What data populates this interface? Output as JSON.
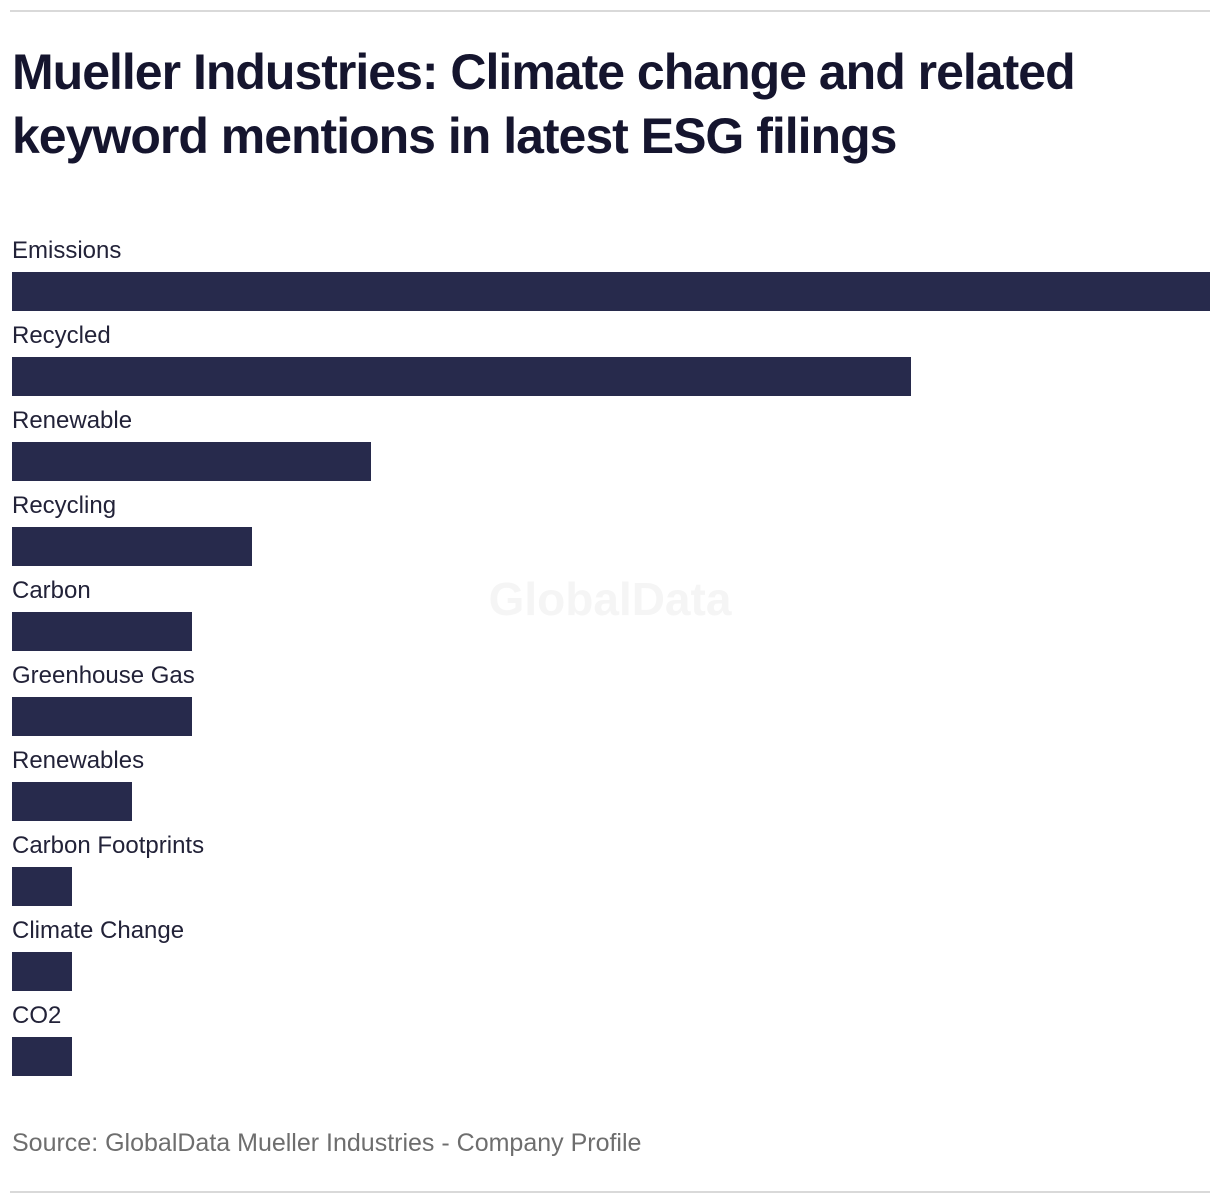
{
  "page": {
    "title_lines": [
      "Mueller Industries: Climate change and related",
      "keyword mentions in latest ESG filings"
    ],
    "watermark": "GlobalData",
    "source": "Source: GlobalData Mueller Industries - Company Profile"
  },
  "colors": {
    "bar": "#272a4c",
    "title_text": "#15152e",
    "label_text": "#222238",
    "source_text": "#6e6e6e",
    "divider": "#d9d9d9",
    "watermark": "#f5f5f5",
    "background": "#ffffff"
  },
  "chart_data": {
    "type": "bar",
    "orientation": "horizontal",
    "title": "Mueller Industries: Climate change and related keyword mentions in latest ESG filings",
    "categories": [
      "Emissions",
      "Recycled",
      "Renewable",
      "Recycling",
      "Carbon",
      "Greenhouse Gas",
      "Renewables",
      "Carbon Footprints",
      "Climate Change",
      "CO2"
    ],
    "values": [
      20,
      15,
      6,
      4,
      3,
      3,
      2,
      1,
      1,
      1
    ],
    "values_estimated_from_bar_lengths": true,
    "value_labels_shown": false,
    "xlabel": "",
    "ylabel": "",
    "xlim": [
      0,
      20
    ],
    "grid": false,
    "legend": false,
    "bar_color": "#272a4c"
  }
}
